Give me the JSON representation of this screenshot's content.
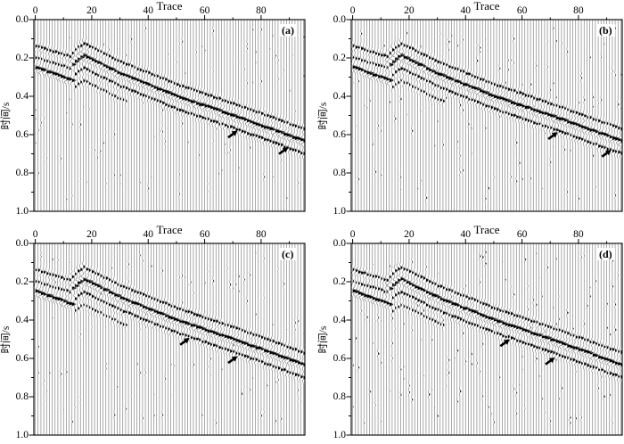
{
  "figure": {
    "background": "#ffffff"
  },
  "chart_data": {
    "type": "seismic-wiggle",
    "description": "Four-panel variable-area seismic wiggle-trace sections labelled (a)-(d); dipping reflection events with black marker arrows",
    "x_axis": {
      "label": "Trace",
      "major_ticks": [
        0,
        20,
        40,
        60,
        80
      ],
      "minor_step": 10,
      "range": [
        0,
        96
      ]
    },
    "y_axis": {
      "label": "时间/s",
      "major_ticks": [
        "0.0",
        "0.2",
        "0.4",
        "0.6",
        "0.8",
        "1.0"
      ],
      "major_values": [
        0.0,
        0.2,
        0.4,
        0.6,
        0.8,
        1.0
      ],
      "minor_step": 0.1,
      "range": [
        0.0,
        1.0
      ]
    },
    "n_traces": 96,
    "wavelet_sigma_s": 0.013,
    "events": [
      {
        "name": "left-event-1",
        "amp": 0.5,
        "offset": 0,
        "points": [
          [
            0,
            0.138
          ],
          [
            12,
            0.192
          ]
        ]
      },
      {
        "name": "left-event-2",
        "amp": 0.4,
        "offset": 0,
        "points": [
          [
            0,
            0.198
          ],
          [
            12,
            0.252
          ]
        ]
      },
      {
        "name": "left-event-3",
        "amp": 0.95,
        "offset": 0,
        "points": [
          [
            0,
            0.248
          ],
          [
            13,
            0.318
          ]
        ]
      },
      {
        "name": "reflection-upper",
        "amp": 0.48,
        "offset": -0.062,
        "x_range": [
          13,
          95
        ],
        "points": [
          [
            13,
            0.235
          ],
          [
            15,
            0.205
          ],
          [
            17,
            0.187
          ],
          [
            30,
            0.282
          ],
          [
            50,
            0.4
          ],
          [
            70,
            0.5
          ],
          [
            95,
            0.633
          ]
        ]
      },
      {
        "name": "reflection-main",
        "amp": 1.0,
        "offset": 0,
        "x_range": [
          13,
          95
        ],
        "points": [
          [
            13,
            0.235
          ],
          [
            15,
            0.205
          ],
          [
            17,
            0.187
          ],
          [
            30,
            0.282
          ],
          [
            50,
            0.4
          ],
          [
            70,
            0.5
          ],
          [
            95,
            0.633
          ]
        ]
      },
      {
        "name": "reflection-lower",
        "amp": 0.5,
        "offset": 0.066,
        "x_range": [
          14,
          95
        ],
        "points": [
          [
            13,
            0.235
          ],
          [
            15,
            0.205
          ],
          [
            17,
            0.187
          ],
          [
            30,
            0.282
          ],
          [
            50,
            0.4
          ],
          [
            70,
            0.5
          ],
          [
            95,
            0.633
          ]
        ]
      },
      {
        "name": "reflection-lower-2",
        "amp": 0.36,
        "offset": 0.132,
        "x_range": [
          14,
          32
        ],
        "points": [
          [
            13,
            0.235
          ],
          [
            15,
            0.205
          ],
          [
            17,
            0.187
          ],
          [
            30,
            0.282
          ],
          [
            50,
            0.4
          ],
          [
            70,
            0.5
          ],
          [
            95,
            0.633
          ]
        ]
      }
    ],
    "panels": [
      {
        "label": "(a)",
        "noise_seed": 11,
        "noise_level": 0.16,
        "arrows": [
          {
            "trace": 70,
            "time": 0.597
          },
          {
            "trace": 88,
            "time": 0.683
          }
        ]
      },
      {
        "label": "(b)",
        "noise_seed": 29,
        "noise_level": 0.22,
        "arrows": [
          {
            "trace": 71,
            "time": 0.605
          },
          {
            "trace": 90,
            "time": 0.697
          }
        ]
      },
      {
        "label": "(c)",
        "noise_seed": 47,
        "noise_level": 0.18,
        "arrows": [
          {
            "trace": 53,
            "time": 0.511
          },
          {
            "trace": 70,
            "time": 0.606
          }
        ]
      },
      {
        "label": "(d)",
        "noise_seed": 63,
        "noise_level": 0.24,
        "arrows": [
          {
            "trace": 54,
            "time": 0.518
          },
          {
            "trace": 70,
            "time": 0.613
          }
        ]
      }
    ],
    "colors": {
      "trace_line": "#7e7e7e",
      "fill": "#000000",
      "frame": "#000000",
      "background": "#ffffff"
    }
  }
}
